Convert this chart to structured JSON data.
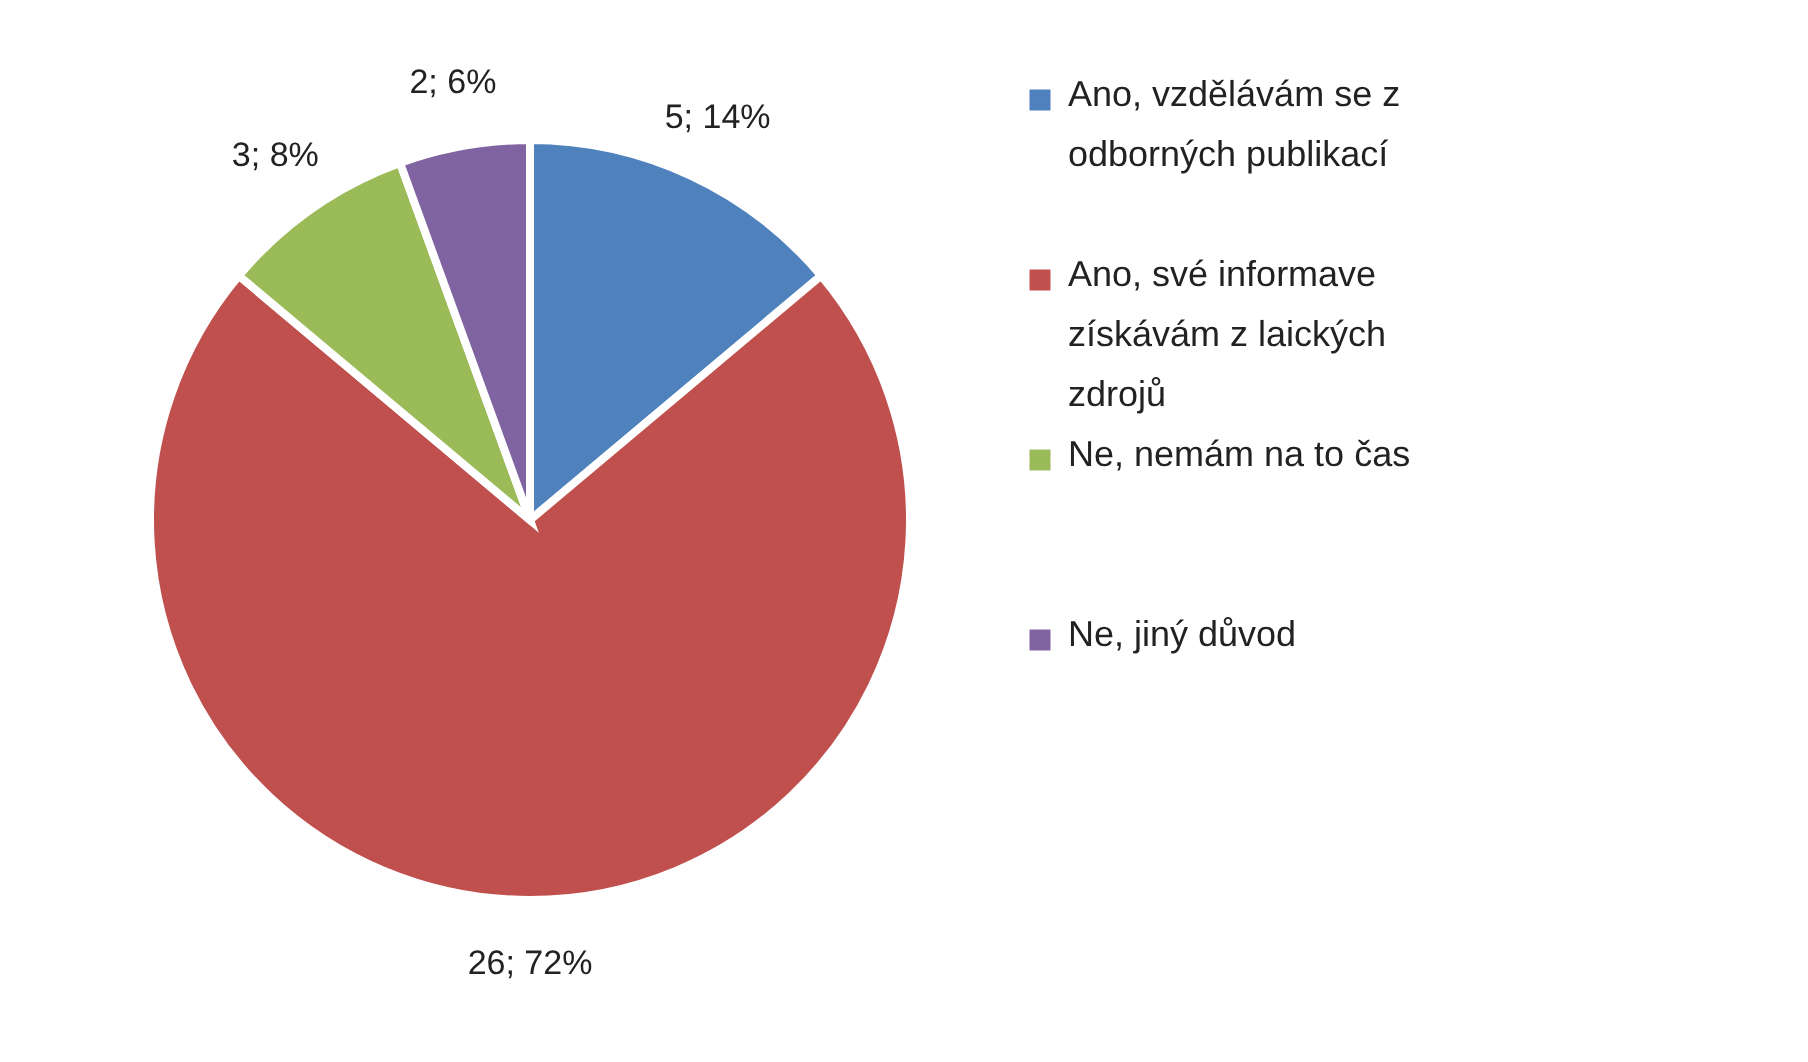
{
  "chart_data": {
    "type": "pie",
    "categories": [
      "Ano, vzdělávám se z odborných publikací",
      "Ano, své informave získávám z laických zdrojů",
      "Ne, nemám na to čas",
      "Ne, jiný důvod"
    ],
    "values": [
      5,
      26,
      3,
      2
    ],
    "colors": [
      "#4f81bd",
      "#c0504d",
      "#9bbb59",
      "#8064a2"
    ],
    "value_labels": [
      "5; 14%",
      "26; 72%",
      "3; 8%",
      "2; 6%"
    ],
    "legend": "right"
  }
}
